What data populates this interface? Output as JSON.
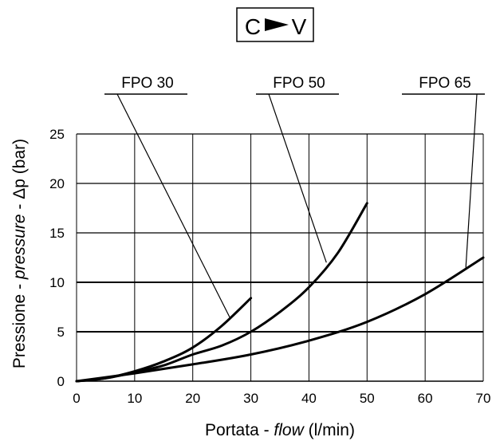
{
  "badge": {
    "from": "C",
    "to": "V",
    "arrow_icon": "right-pointer-icon"
  },
  "chart_data": {
    "type": "line",
    "ylabel_parts": [
      "Pressione - ",
      "pressure",
      " - Δp (bar)"
    ],
    "xlabel_parts": [
      "Portata - ",
      "flow",
      " (l/min)"
    ],
    "xlim": [
      0,
      70
    ],
    "ylim": [
      0,
      25
    ],
    "x_ticks": [
      0,
      10,
      20,
      30,
      40,
      50,
      60,
      70
    ],
    "y_ticks": [
      0,
      5,
      10,
      15,
      20,
      25
    ],
    "grid": true,
    "series": [
      {
        "name": "FPO 30",
        "x": [
          0,
          5,
          10,
          15,
          20,
          25,
          30
        ],
        "y": [
          0,
          0.3,
          1.0,
          2.0,
          3.4,
          5.6,
          8.4
        ]
      },
      {
        "name": "FPO 50",
        "x": [
          0,
          5,
          10,
          15,
          20,
          25,
          30,
          35,
          40,
          45,
          50
        ],
        "y": [
          0,
          0.3,
          0.9,
          1.6,
          2.7,
          3.6,
          5.0,
          7.0,
          9.5,
          13.0,
          18.0
        ]
      },
      {
        "name": "FPO 65",
        "x": [
          0,
          10,
          20,
          30,
          40,
          50,
          60,
          70
        ],
        "y": [
          0,
          0.8,
          1.7,
          2.7,
          4.1,
          6.0,
          8.8,
          12.5
        ]
      }
    ],
    "annotations": [
      {
        "label": "FPO 30",
        "points_to": {
          "x": 26.5,
          "y": 6.3
        }
      },
      {
        "label": "FPO 50",
        "points_to": {
          "x": 43,
          "y": 12
        }
      },
      {
        "label": "FPO 65",
        "points_to": {
          "x": 67,
          "y": 11.5
        }
      }
    ]
  }
}
